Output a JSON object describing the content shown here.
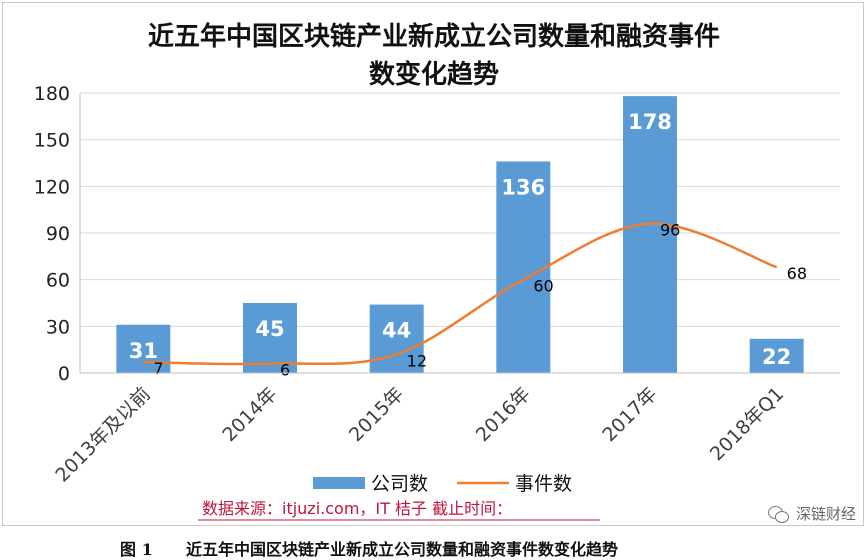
{
  "chart_data": {
    "type": "bar",
    "title_lines": [
      "近五年中国区块链产业新成立公司数量和融资事件",
      "数变化趋势"
    ],
    "categories": [
      "2013年及以前",
      "2014年",
      "2015年",
      "2016年",
      "2017年",
      "2018年Q1"
    ],
    "series": [
      {
        "name": "公司数",
        "type": "bar",
        "color": "#5b9bd5",
        "values": [
          31,
          45,
          44,
          136,
          178,
          22
        ]
      },
      {
        "name": "事件数",
        "type": "line",
        "color": "#ed7d31",
        "values": [
          7,
          6,
          12,
          60,
          96,
          68
        ]
      }
    ],
    "ylim": [
      0,
      180
    ],
    "yticks": [
      0,
      30,
      60,
      90,
      120,
      150,
      180
    ],
    "grid": true,
    "legend_position": "bottom"
  },
  "source_note": "数据来源：itjuzi.com，IT 桔子     截止时间：",
  "caption": {
    "label": "图 1",
    "text": "近五年中国区块链产业新成立公司数量和融资事件数变化趋势"
  },
  "watermark": {
    "text": "深链财经",
    "icon": "wechat-icon"
  }
}
